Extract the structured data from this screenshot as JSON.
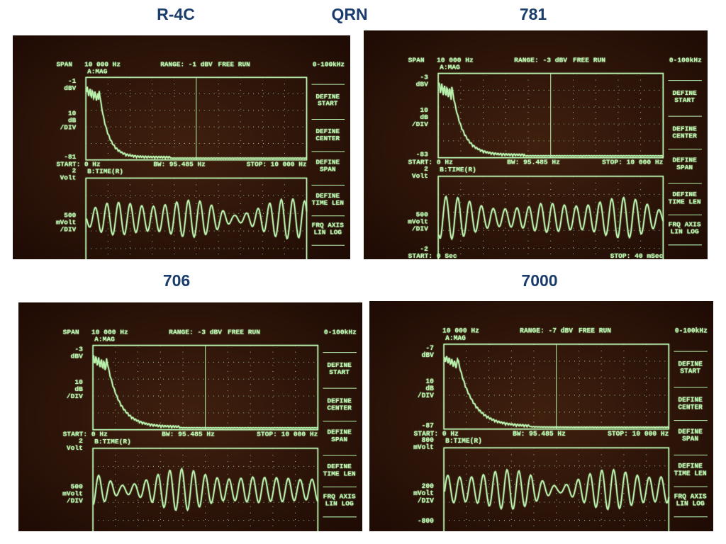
{
  "headings": [
    "R-4C",
    "QRN",
    "781",
    "706",
    "7000"
  ],
  "screens": [
    {
      "span": "SPAN",
      "span_value": "10 000 Hz",
      "range": "RANGE: -1 dBV",
      "run": "FREE RUN",
      "band": "0-100kHz",
      "trace_a": "A:MAG",
      "a_top": [
        "-1",
        "dBV"
      ],
      "a_mid": [
        "10",
        "dB",
        "/DIV"
      ],
      "a_bottom": "-81",
      "start": "START: 0 Hz",
      "bw": "BW: 95.485 Hz",
      "stop": "STOP: 10 000 Hz",
      "trace_b": "B:TIME(R)",
      "b_top": [
        "2",
        "Volt"
      ],
      "b_mid": [
        "500",
        "mVolt",
        "/DIV"
      ],
      "softkeys": [
        [
          "DEFINE",
          "START"
        ],
        [
          "DEFINE",
          "CENTER"
        ],
        [
          "DEFINE",
          "SPAN"
        ],
        [
          "DEFINE",
          "TIME LEN"
        ],
        [
          "FRQ AXIS",
          "LIN  LOG"
        ]
      ]
    },
    {
      "span": "SPAN",
      "span_value": "10 000 Hz",
      "range": "RANGE: -3 dBV",
      "run": "FREE RUN",
      "band": "0-100kHz",
      "trace_a": "A:MAG",
      "a_top": [
        "-3",
        "dBV"
      ],
      "a_mid": [
        "10",
        "dB",
        "/DIV"
      ],
      "a_bottom": "-83",
      "start": "START: 0 Hz",
      "bw": "BW: 95.485 Hz",
      "stop": "STOP: 10 000 Hz",
      "trace_b": "B:TIME(R)",
      "b_top": [
        "2",
        "Volt"
      ],
      "b_mid": [
        "500",
        "mVolt",
        "/DIV"
      ],
      "b_bottom": "-2",
      "foot_start": "START: 0  Sec",
      "foot_stop": "STOP: 40 mSec",
      "softkeys": [
        [
          "DEFINE",
          "START"
        ],
        [
          "DEFINE",
          "CENTER"
        ],
        [
          "DEFINE",
          "SPAN"
        ],
        [
          "DEFINE",
          "TIME LEN"
        ],
        [
          "FRQ AXIS",
          "LIN  LOG"
        ]
      ]
    },
    {
      "span": "SPAN",
      "span_value": "10 000 Hz",
      "range": "RANGE: -3 dBV",
      "run": "FREE RUN",
      "band": "0-100kHz",
      "trace_a": "A:MAG",
      "a_top": [
        "-3",
        "dBV"
      ],
      "a_mid": [
        "10",
        "dB",
        "/DIV"
      ],
      "start": "START: 0 Hz",
      "bw": "BW: 95.485 Hz",
      "stop": "STOP: 10 000 Hz",
      "trace_b": "B:TIME(R)",
      "b_top": [
        "2",
        "Volt"
      ],
      "b_mid": [
        "500",
        "mVolt",
        "/DIV"
      ],
      "softkeys": [
        [
          "DEFINE",
          "START"
        ],
        [
          "DEFINE",
          "CENTER"
        ],
        [
          "DEFINE",
          "SPAN"
        ],
        [
          "DEFINE",
          "TIME LEN"
        ],
        [
          "FRQ AXIS",
          "LIN  LOG"
        ]
      ]
    },
    {
      "span_value": "10 000 Hz",
      "range": "RANGE: -7 dBV",
      "run": "FREE RUN",
      "band": "0-100kHz",
      "trace_a": "A:MAG",
      "a_top": [
        "-7",
        "dBV"
      ],
      "a_mid": [
        "10",
        "dB",
        "/DIV"
      ],
      "a_bottom": "-87",
      "start": "START: 0 Hz",
      "bw": "BW: 95.485 Hz",
      "stop": "STOP: 10 000 Hz",
      "trace_b": "B:TIME(R)",
      "b_top": [
        "800",
        "mVolt"
      ],
      "b_mid": [
        "200",
        "mVolt",
        "/DIV"
      ],
      "b_bottom": "-800",
      "softkeys": [
        [
          "DEFINE",
          "START"
        ],
        [
          "DEFINE",
          "CENTER"
        ],
        [
          "DEFINE",
          "SPAN"
        ],
        [
          "DEFINE",
          "TIME LEN"
        ],
        [
          "FRQ AXIS",
          "LIN  LOG"
        ]
      ]
    }
  ]
}
